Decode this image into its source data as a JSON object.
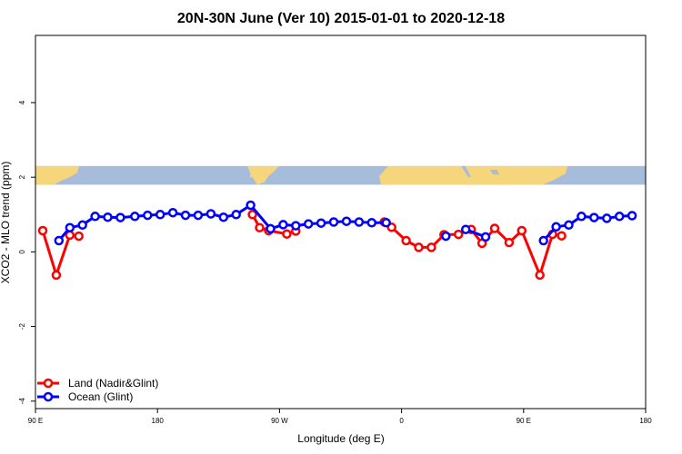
{
  "chart_data": {
    "type": "line",
    "title": "20N-30N June (Ver 10)   2015-01-01 to 2020-12-18",
    "xlabel": "Longitude (deg E)",
    "ylabel": "XCO2 - MLO trend (ppm)",
    "xlim": [
      90,
      420
    ],
    "ylim": [
      -4.2,
      5.8
    ],
    "x_ticks": [
      {
        "value": 90,
        "label": "90 E"
      },
      {
        "value": 157.5,
        "label": "180"
      },
      {
        "value": 225,
        "label": "90 W"
      },
      {
        "value": 292.5,
        "label": "0"
      },
      {
        "value": 360,
        "label": "90 E"
      },
      {
        "value": 427.5,
        "label": "180"
      }
    ],
    "y_ticks": [
      {
        "value": -4,
        "label": "-4"
      },
      {
        "value": -2,
        "label": "-2"
      },
      {
        "value": 0,
        "label": "0"
      },
      {
        "value": 2,
        "label": "2"
      },
      {
        "value": 4,
        "label": "4"
      }
    ],
    "grid": false,
    "legend_position": "bottom-left",
    "map_band": {
      "y_range": [
        1.8,
        2.3
      ],
      "ocean_color": "#a7bcdb",
      "land_color": "#f5d67c"
    },
    "series": [
      {
        "name": "Land (Nadir&Glint)",
        "color": "#ff0000",
        "segments": [
          [
            [
              94,
              0.57
            ],
            [
              101.5,
              -0.62
            ],
            [
              109,
              0.45
            ],
            [
              114,
              0.42
            ]
          ],
          [
            [
              210,
              1.0
            ],
            [
              214,
              0.65
            ],
            [
              219,
              0.57
            ],
            [
              229,
              0.48
            ],
            [
              234,
              0.56
            ]
          ],
          [
            [
              283,
              0.8
            ],
            [
              287,
              0.66
            ],
            [
              295,
              0.3
            ],
            [
              302,
              0.12
            ],
            [
              309,
              0.12
            ],
            [
              316,
              0.46
            ],
            [
              324,
              0.47
            ],
            [
              331,
              0.6
            ],
            [
              337,
              0.23
            ],
            [
              344,
              0.63
            ],
            [
              352,
              0.25
            ],
            [
              359,
              0.57
            ],
            [
              369,
              -0.62
            ],
            [
              376,
              0.47
            ],
            [
              381,
              0.43
            ]
          ]
        ]
      },
      {
        "name": "Ocean (Glint)",
        "color": "#0000ff",
        "segments": [
          [
            [
              103,
              0.3
            ],
            [
              109,
              0.65
            ],
            [
              116,
              0.72
            ],
            [
              123,
              0.95
            ],
            [
              130,
              0.93
            ],
            [
              137,
              0.92
            ],
            [
              145,
              0.95
            ],
            [
              152,
              0.98
            ],
            [
              159,
              1.0
            ],
            [
              166,
              1.05
            ],
            [
              173,
              0.98
            ],
            [
              180,
              0.98
            ],
            [
              187,
              1.02
            ],
            [
              194,
              0.93
            ],
            [
              201,
              1.0
            ],
            [
              209,
              1.25
            ],
            [
              220,
              0.62
            ],
            [
              227,
              0.73
            ],
            [
              234,
              0.7
            ],
            [
              241,
              0.75
            ],
            [
              248,
              0.77
            ],
            [
              255,
              0.8
            ],
            [
              262,
              0.82
            ],
            [
              269,
              0.8
            ],
            [
              276,
              0.78
            ],
            [
              284,
              0.78
            ]
          ],
          [
            [
              317,
              0.42
            ]
          ],
          [
            [
              328,
              0.6
            ],
            [
              339,
              0.4
            ]
          ],
          [
            [
              371,
              0.3
            ],
            [
              378,
              0.67
            ],
            [
              385,
              0.72
            ],
            [
              392,
              0.95
            ],
            [
              399,
              0.92
            ],
            [
              406,
              0.9
            ],
            [
              413,
              0.95
            ],
            [
              420,
              0.97
            ]
          ]
        ]
      }
    ]
  }
}
